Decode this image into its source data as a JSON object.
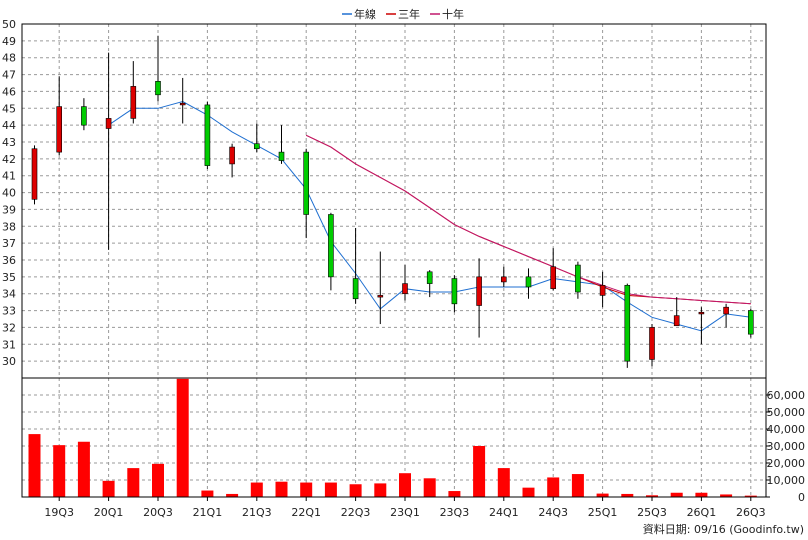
{
  "chart_data": {
    "type": "candlestick",
    "legend": {
      "placement": "top-center",
      "items": [
        {
          "name": "年線",
          "color": "#1f6fd0"
        },
        {
          "name": "三年",
          "color": "#cc0000"
        },
        {
          "name": "十年",
          "color": "#c0186c"
        }
      ]
    },
    "price_axis": {
      "ticks": [
        30,
        31,
        32,
        33,
        34,
        35,
        36,
        37,
        38,
        39,
        40,
        41,
        42,
        43,
        44,
        45,
        46,
        47,
        48,
        49,
        50
      ],
      "ylim": [
        29,
        50
      ]
    },
    "volume_axis": {
      "ticks": [
        "0",
        "10,000",
        "20,000",
        "30,000",
        "40,000",
        "50,000",
        "60,000"
      ],
      "ylim": [
        0,
        70000
      ]
    },
    "x_tick_labels": [
      "19Q3",
      "20Q1",
      "20Q3",
      "21Q1",
      "21Q3",
      "22Q1",
      "22Q3",
      "23Q1",
      "23Q3",
      "24Q1",
      "24Q3",
      "25Q1",
      "25Q3",
      "26Q1",
      "26Q3"
    ],
    "candles": [
      {
        "q": "19Q2",
        "open": 42.6,
        "high": 42.8,
        "low": 39.3,
        "close": 39.6
      },
      {
        "q": "19Q3",
        "open": 45.1,
        "high": 46.9,
        "low": 42.2,
        "close": 42.4
      },
      {
        "q": "19Q4",
        "open": 44.0,
        "high": 45.6,
        "low": 43.7,
        "close": 45.1
      },
      {
        "q": "20Q1",
        "open": 44.4,
        "high": 48.3,
        "low": 36.6,
        "close": 43.8
      },
      {
        "q": "20Q2",
        "open": 46.3,
        "high": 47.8,
        "low": 44.1,
        "close": 44.4
      },
      {
        "q": "20Q3",
        "open": 45.8,
        "high": 49.3,
        "low": 45.4,
        "close": 46.6
      },
      {
        "q": "20Q4",
        "open": 45.3,
        "high": 46.8,
        "low": 44.1,
        "close": 45.2
      },
      {
        "q": "21Q1",
        "open": 41.6,
        "high": 45.4,
        "low": 41.4,
        "close": 45.2
      },
      {
        "q": "21Q2",
        "open": 42.7,
        "high": 42.9,
        "low": 40.9,
        "close": 41.7
      },
      {
        "q": "21Q3",
        "open": 42.6,
        "high": 44.1,
        "low": 42.4,
        "close": 42.9
      },
      {
        "q": "21Q4",
        "open": 41.9,
        "high": 44.0,
        "low": 41.7,
        "close": 42.4
      },
      {
        "q": "22Q1",
        "open": 38.7,
        "high": 42.6,
        "low": 37.3,
        "close": 42.4
      },
      {
        "q": "22Q2",
        "open": 35.0,
        "high": 38.8,
        "low": 34.2,
        "close": 38.7
      },
      {
        "q": "22Q3",
        "open": 33.7,
        "high": 37.9,
        "low": 33.4,
        "close": 34.9
      },
      {
        "q": "22Q4",
        "open": 33.9,
        "high": 36.5,
        "low": 32.2,
        "close": 33.8
      },
      {
        "q": "23Q1",
        "open": 34.6,
        "high": 35.7,
        "low": 33.6,
        "close": 34.0
      },
      {
        "q": "23Q2",
        "open": 34.6,
        "high": 35.4,
        "low": 33.8,
        "close": 35.3
      },
      {
        "q": "23Q3",
        "open": 33.4,
        "high": 35.1,
        "low": 32.9,
        "close": 34.9
      },
      {
        "q": "23Q4",
        "open": 35.0,
        "high": 36.1,
        "low": 31.4,
        "close": 33.3
      },
      {
        "q": "24Q1",
        "open": 35.0,
        "high": 35.6,
        "low": 34.4,
        "close": 34.7
      },
      {
        "q": "24Q2",
        "open": 34.4,
        "high": 35.5,
        "low": 33.7,
        "close": 35.0
      },
      {
        "q": "24Q3",
        "open": 35.6,
        "high": 36.7,
        "low": 34.2,
        "close": 34.3
      },
      {
        "q": "24Q4",
        "open": 34.1,
        "high": 35.9,
        "low": 33.7,
        "close": 35.7
      },
      {
        "q": "25Q1",
        "open": 34.5,
        "high": 35.3,
        "low": 33.2,
        "close": 33.9
      },
      {
        "q": "25Q2",
        "open": 30.0,
        "high": 34.6,
        "low": 29.6,
        "close": 34.5
      },
      {
        "q": "25Q3",
        "open": 32.0,
        "high": 32.2,
        "low": 29.7,
        "close": 30.1
      },
      {
        "q": "25Q4",
        "open": 32.7,
        "high": 33.8,
        "low": 32.1,
        "close": 32.1
      },
      {
        "q": "26Q1",
        "open": 32.9,
        "high": 33.2,
        "low": 31.0,
        "close": 32.8
      },
      {
        "q": "26Q2",
        "open": 33.2,
        "high": 33.4,
        "low": 32.0,
        "close": 32.8
      },
      {
        "q": "26Q3",
        "open": 31.6,
        "high": 33.1,
        "low": 31.4,
        "close": 33.0
      }
    ],
    "volumes": [
      37000,
      30500,
      32500,
      9500,
      17000,
      19500,
      69500,
      3800,
      1800,
      8500,
      9000,
      8500,
      8500,
      7500,
      8000,
      14000,
      11000,
      3500,
      30000,
      17000,
      5500,
      11500,
      13500,
      2000,
      1800,
      1000,
      2500,
      2500,
      1500,
      800
    ],
    "series": [
      {
        "name": "年線",
        "values": [
          null,
          null,
          null,
          44.0,
          45.0,
          45.0,
          45.4,
          44.6,
          43.6,
          42.8,
          42.0,
          40.2,
          37.1,
          35.2,
          33.1,
          34.3,
          34.1,
          34.1,
          34.4,
          34.4,
          34.4,
          34.9,
          34.7,
          34.5,
          33.5,
          32.6,
          32.2,
          31.8,
          32.8,
          32.6
        ]
      },
      {
        "name": "三年",
        "values": [
          null,
          null,
          null,
          null,
          null,
          null,
          null,
          null,
          null,
          null,
          null,
          43.4,
          42.7,
          41.7,
          40.9,
          40.1,
          39.1,
          38.1,
          37.4,
          36.8,
          36.2,
          35.6,
          35.0,
          34.4,
          33.9,
          33.8,
          33.7,
          33.6,
          33.5,
          33.4
        ]
      },
      {
        "name": "十年",
        "values": [
          null,
          null,
          null,
          null,
          null,
          null,
          null,
          null,
          null,
          null,
          null,
          43.4,
          42.7,
          41.7,
          40.9,
          40.1,
          39.1,
          38.1,
          37.4,
          36.8,
          36.2,
          35.6,
          35.0,
          34.5,
          34.0,
          33.8,
          33.7,
          33.6,
          33.5,
          33.4
        ]
      }
    ]
  },
  "footer": {
    "source": "資料日期: 09/16  (Goodinfo.tw)"
  }
}
